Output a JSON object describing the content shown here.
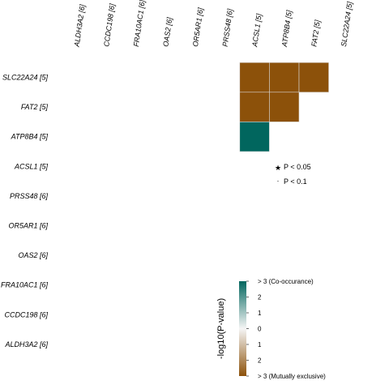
{
  "chart_data": {
    "type": "heatmap",
    "title": "",
    "column_genes": [
      "ALDH3A2 [6]",
      "CCDC198 [6]",
      "FRA10AC1 [6]",
      "OAS2 [6]",
      "OR5AR1 [6]",
      "PRSS48 [6]",
      "ACSL1 [5]",
      "ATP8B4 [5]",
      "FAT2 [5]",
      "SLC22A24 [5]"
    ],
    "row_genes": [
      "SLC22A24 [5]",
      "FAT2 [5]",
      "ATP8B4 [5]",
      "ACSL1 [5]",
      "PRSS48 [6]",
      "OR5AR1 [6]",
      "OAS2 [6]",
      "FRA10AC1 [6]",
      "CCDC198 [6]",
      "ALDH3A2 [6]"
    ],
    "cells": [
      {
        "row": "SLC22A24 [5]",
        "col": "ACSL1 [5]",
        "value": -3
      },
      {
        "row": "SLC22A24 [5]",
        "col": "ATP8B4 [5]",
        "value": -3
      },
      {
        "row": "SLC22A24 [5]",
        "col": "FAT2 [5]",
        "value": -3
      },
      {
        "row": "FAT2 [5]",
        "col": "ACSL1 [5]",
        "value": -3
      },
      {
        "row": "FAT2 [5]",
        "col": "ATP8B4 [5]",
        "value": -3
      },
      {
        "row": "ATP8B4 [5]",
        "col": "ACSL1 [5]",
        "value": 3
      }
    ],
    "significance_legend": [
      {
        "symbol": "★",
        "label": "P < 0.05"
      },
      {
        "symbol": "·",
        "label": "P < 0.1"
      }
    ],
    "colorbar": {
      "title": "-log10(P-value)",
      "range": [
        -3,
        3
      ],
      "ticks": [
        {
          "value": 3,
          "label": "> 3 (Co-occurance)"
        },
        {
          "value": 2,
          "label": "2"
        },
        {
          "value": 1,
          "label": "1"
        },
        {
          "value": 0,
          "label": "0"
        },
        {
          "value": -1,
          "label": "1"
        },
        {
          "value": -2,
          "label": "2"
        },
        {
          "value": -3,
          "label": "> 3 (Mutually exclusive)"
        }
      ],
      "colors": {
        "positive": "#01665e",
        "mid": "#f5f5f5",
        "negative": "#8c510a"
      }
    }
  }
}
